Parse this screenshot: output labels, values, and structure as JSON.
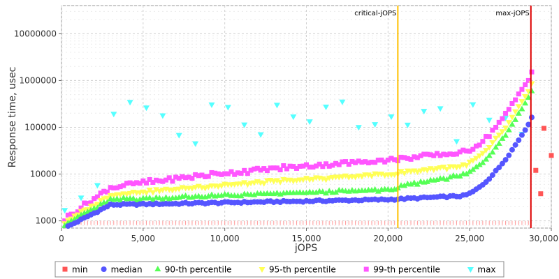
{
  "chart_data": {
    "type": "scatter",
    "xlabel": "jOPS",
    "ylabel": "Response time, usec",
    "xlim": [
      0,
      30000
    ],
    "ylim": [
      700,
      40000000
    ],
    "yscale": "log",
    "grid": true,
    "legend_position": "bottom",
    "x_ticks": [
      "0",
      "5,000",
      "10,000",
      "15,000",
      "20,000",
      "25,000",
      "30,000"
    ],
    "y_ticks": [
      "1000",
      "10000",
      "100000",
      "1000000",
      "10000000"
    ],
    "vertical_lines": [
      {
        "label": "critical-jOPS",
        "x": 20600,
        "color": "#ffc000"
      },
      {
        "label": "max-jOPS",
        "x": 28750,
        "color": "#dd0000"
      }
    ],
    "series": [
      {
        "name": "min",
        "color": "#ff5555",
        "marker": "square",
        "points": [
          [
            29050,
            12000
          ],
          [
            29350,
            3800
          ],
          [
            29550,
            95000
          ],
          [
            30000,
            25000
          ]
        ]
      },
      {
        "name": "median",
        "color": "#5555ff",
        "marker": "circle",
        "points": []
      },
      {
        "name": "90-th percentile",
        "color": "#55ff55",
        "marker": "triangle-up",
        "points": []
      },
      {
        "name": "95-th percentile",
        "color": "#ffff55",
        "marker": "triangle-down",
        "points": []
      },
      {
        "name": "99-th percentile",
        "color": "#ff55ff",
        "marker": "square",
        "points": []
      },
      {
        "name": "max",
        "color": "#55ffff",
        "marker": "triangle-down",
        "points": []
      }
    ]
  }
}
